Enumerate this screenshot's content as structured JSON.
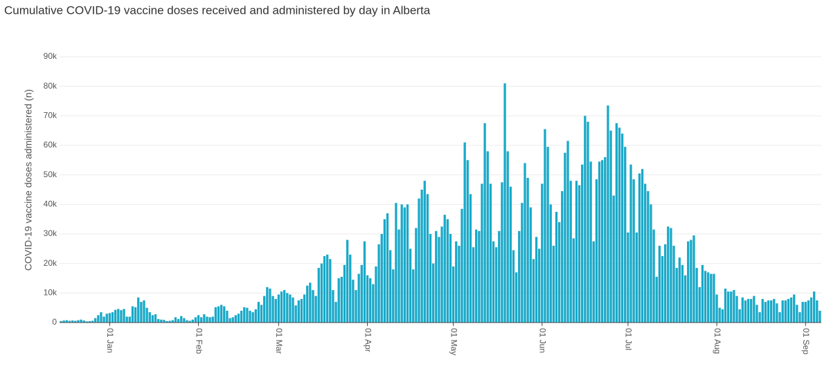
{
  "chart_data": {
    "type": "bar",
    "title": "Cumulative COVID-19 vaccine doses received and administered by day in Alberta",
    "y_label": "COVID-19 vaccine doses administered (n)",
    "color": "#1aa9c8",
    "grid": true,
    "ylim": [
      0,
      90000
    ],
    "yticks": [
      0,
      {
        "value": 10000,
        "label": "10k"
      },
      {
        "value": 20000,
        "label": "20k"
      },
      {
        "value": 30000,
        "label": "30k"
      },
      {
        "value": 40000,
        "label": "40k"
      },
      {
        "value": 50000,
        "label": "50k"
      },
      {
        "value": 60000,
        "label": "60k"
      },
      {
        "value": 70000,
        "label": "70k"
      },
      {
        "value": 80000,
        "label": "80k"
      },
      {
        "value": 90000,
        "label": "90k"
      }
    ],
    "categories": [
      null,
      null,
      null,
      null,
      null,
      null,
      null,
      null,
      null,
      null,
      null,
      null,
      null,
      null,
      null,
      null,
      null,
      "01 Jan",
      null,
      null,
      null,
      null,
      null,
      null,
      null,
      null,
      null,
      null,
      null,
      null,
      null,
      null,
      null,
      null,
      null,
      null,
      null,
      null,
      null,
      null,
      null,
      null,
      null,
      null,
      null,
      null,
      null,
      null,
      "01 Feb",
      null,
      null,
      null,
      null,
      null,
      null,
      null,
      null,
      null,
      null,
      null,
      null,
      null,
      null,
      null,
      null,
      null,
      null,
      null,
      null,
      null,
      null,
      null,
      null,
      null,
      null,
      null,
      "01 Mar",
      null,
      null,
      null,
      null,
      null,
      null,
      null,
      null,
      null,
      null,
      null,
      null,
      null,
      null,
      null,
      null,
      null,
      null,
      null,
      null,
      null,
      null,
      null,
      null,
      null,
      null,
      null,
      null,
      null,
      null,
      "01 Apr",
      null,
      null,
      null,
      null,
      null,
      null,
      null,
      null,
      null,
      null,
      null,
      null,
      null,
      null,
      null,
      null,
      null,
      null,
      null,
      null,
      null,
      null,
      null,
      null,
      null,
      null,
      null,
      null,
      null,
      "01 May",
      null,
      null,
      null,
      null,
      null,
      null,
      null,
      null,
      null,
      null,
      null,
      null,
      null,
      null,
      null,
      null,
      null,
      null,
      null,
      null,
      null,
      null,
      null,
      null,
      null,
      null,
      null,
      null,
      null,
      null,
      "01 Jun",
      null,
      null,
      null,
      null,
      null,
      null,
      null,
      null,
      null,
      null,
      null,
      null,
      null,
      null,
      null,
      null,
      null,
      null,
      null,
      null,
      null,
      null,
      null,
      null,
      null,
      null,
      null,
      null,
      null,
      "01 Jul",
      null,
      null,
      null,
      null,
      null,
      null,
      null,
      null,
      null,
      null,
      null,
      null,
      null,
      null,
      null,
      null,
      null,
      null,
      null,
      null,
      null,
      null,
      null,
      null,
      null,
      null,
      null,
      null,
      null,
      null,
      "01 Aug",
      null,
      null,
      null,
      null,
      null,
      null,
      null,
      null,
      null,
      null,
      null,
      null,
      null,
      null,
      null,
      null,
      null,
      null,
      null,
      null,
      null,
      null,
      null,
      null,
      null,
      null,
      null,
      null,
      null,
      null,
      "01 Sep",
      null,
      null,
      null,
      null,
      null
    ],
    "values": [
      500,
      700,
      800,
      600,
      700,
      600,
      800,
      1000,
      700,
      400,
      500,
      600,
      1500,
      2500,
      3500,
      2000,
      3000,
      3200,
      3500,
      4300,
      4600,
      4200,
      4600,
      2000,
      2000,
      5500,
      5200,
      8500,
      7000,
      7500,
      5000,
      3500,
      2500,
      2800,
      1200,
      1000,
      900,
      500,
      600,
      800,
      1800,
      1200,
      2200,
      1500,
      800,
      600,
      1000,
      1800,
      2500,
      1800,
      2800,
      2000,
      1800,
      2000,
      5200,
      5500,
      6000,
      5500,
      4000,
      1500,
      1800,
      2500,
      3000,
      4000,
      5200,
      5000,
      4000,
      3500,
      4500,
      7000,
      6000,
      9000,
      12000,
      11500,
      9000,
      8000,
      9500,
      10500,
      11000,
      10000,
      9500,
      8500,
      5800,
      7500,
      8000,
      9500,
      12500,
      13500,
      11000,
      9000,
      18500,
      20000,
      22500,
      23000,
      21500,
      11000,
      7000,
      15000,
      15500,
      19500,
      28000,
      23000,
      14500,
      11000,
      16500,
      19500,
      27500,
      16000,
      15000,
      13000,
      19000,
      26500,
      30000,
      35000,
      37000,
      24500,
      18000,
      40500,
      31500,
      40000,
      39000,
      40000,
      25000,
      18000,
      32000,
      42000,
      45000,
      48000,
      43500,
      30000,
      20000,
      31000,
      29000,
      32500,
      36500,
      35000,
      30000,
      19000,
      27500,
      26000,
      38500,
      61000,
      55000,
      43500,
      25500,
      31500,
      31000,
      47000,
      67500,
      58000,
      47000,
      27500,
      25500,
      31000,
      47500,
      81000,
      58000,
      46000,
      24500,
      17000,
      31000,
      40500,
      54000,
      49000,
      39000,
      21500,
      29000,
      25000,
      47000,
      65500,
      59500,
      40000,
      26000,
      37500,
      34000,
      44500,
      57500,
      61500,
      48000,
      28500,
      48000,
      46500,
      53500,
      70000,
      68000,
      54500,
      27500,
      48500,
      54500,
      55000,
      56000,
      73500,
      65000,
      43000,
      67500,
      66000,
      64000,
      59500,
      30500,
      53500,
      48500,
      30500,
      50500,
      52000,
      47000,
      44500,
      40000,
      31500,
      15500,
      26000,
      22500,
      26500,
      32500,
      32000,
      26000,
      18500,
      22000,
      19500,
      16000,
      27500,
      28000,
      29500,
      18500,
      12000,
      19500,
      17500,
      17000,
      16500,
      16500,
      9500,
      5000,
      4500,
      11500,
      10500,
      10500,
      11000,
      9000,
      4500,
      8500,
      7500,
      8000,
      8000,
      9000,
      6000,
      3500,
      8000,
      7000,
      7500,
      7500,
      8000,
      6500,
      3500,
      7500,
      7500,
      8000,
      8500,
      9500,
      6000,
      3500,
      7000,
      7000,
      7500,
      8500,
      10500,
      7500,
      4000
    ]
  }
}
